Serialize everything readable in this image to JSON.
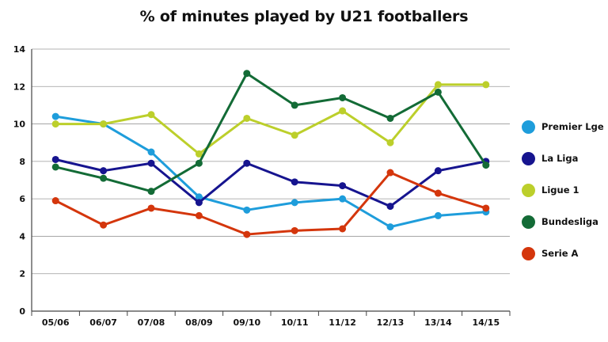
{
  "chart_data": {
    "type": "line",
    "title": "% of minutes played by U21 footballers",
    "xlabel": "",
    "ylabel": "",
    "ylim": [
      0,
      14
    ],
    "yticks": [
      "0",
      "2",
      "4",
      "6",
      "8",
      "10",
      "12",
      "14"
    ],
    "categories": [
      "05/06",
      "06/07",
      "07/08",
      "08/09",
      "09/10",
      "10/11",
      "11/12",
      "12/13",
      "13/14",
      "14/15"
    ],
    "grid": true,
    "legend_position": "right",
    "series": [
      {
        "name": "Premier Lge",
        "color": "#1e9ddb",
        "values": [
          10.4,
          10.0,
          8.5,
          6.1,
          5.4,
          5.8,
          6.0,
          4.5,
          5.1,
          5.3
        ]
      },
      {
        "name": "La Liga",
        "color": "#16148f",
        "values": [
          8.1,
          7.5,
          7.9,
          5.8,
          7.9,
          6.9,
          6.7,
          5.6,
          7.5,
          8.0
        ]
      },
      {
        "name": "Ligue 1",
        "color": "#bccf2b",
        "values": [
          10.0,
          10.0,
          10.5,
          8.4,
          10.3,
          9.4,
          10.7,
          9.0,
          12.1,
          12.1
        ]
      },
      {
        "name": "Bundesliga",
        "color": "#136b36",
        "values": [
          7.7,
          7.1,
          6.4,
          7.9,
          12.7,
          11.0,
          11.4,
          10.3,
          11.7,
          7.8
        ]
      },
      {
        "name": "Serie A",
        "color": "#d4360c",
        "values": [
          5.9,
          4.6,
          5.5,
          5.1,
          4.1,
          4.3,
          4.4,
          7.4,
          6.3,
          5.5
        ]
      }
    ]
  }
}
